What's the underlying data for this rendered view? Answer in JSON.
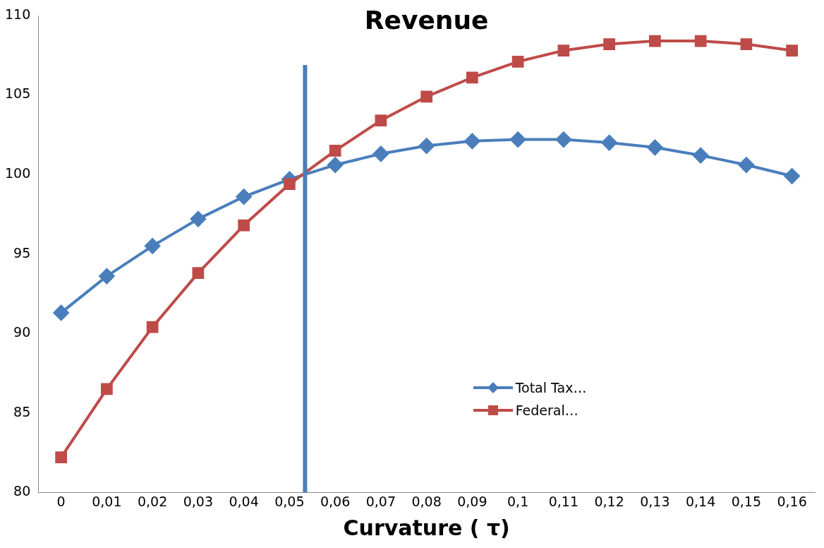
{
  "chart_data": {
    "type": "line",
    "title": "Revenue",
    "xlabel": "Curvature ( τ)",
    "x": [
      0,
      0.01,
      0.02,
      0.03,
      0.04,
      0.05,
      0.06,
      0.07,
      0.08,
      0.09,
      0.1,
      0.11,
      0.12,
      0.13,
      0.14,
      0.15,
      0.16
    ],
    "xlim": [
      -0.005,
      0.165
    ],
    "xticks": [
      0,
      {
        "value": 0.01,
        "label": "0,01"
      },
      {
        "value": 0.02,
        "label": "0,02"
      },
      {
        "value": 0.03,
        "label": "0,03"
      },
      {
        "value": 0.04,
        "label": "0,04"
      },
      {
        "value": 0.05,
        "label": "0,05"
      },
      {
        "value": 0.06,
        "label": "0,06"
      },
      {
        "value": 0.07,
        "label": "0,07"
      },
      {
        "value": 0.08,
        "label": "0,08"
      },
      {
        "value": 0.09,
        "label": "0,09"
      },
      {
        "value": 0.1,
        "label": "0,1"
      },
      {
        "value": 0.11,
        "label": "0,11"
      },
      {
        "value": 0.12,
        "label": "0,12"
      },
      {
        "value": 0.13,
        "label": "0,13"
      },
      {
        "value": 0.14,
        "label": "0,14"
      },
      {
        "value": 0.15,
        "label": "0,15"
      },
      {
        "value": 0.16,
        "label": "0,16"
      }
    ],
    "ylim": [
      80,
      110
    ],
    "yticks": [
      80,
      85,
      90,
      95,
      100,
      105,
      110
    ],
    "series": [
      {
        "name": "Total Tax…",
        "color": "#4a7ebb",
        "marker": "diamond",
        "values": [
          91.3,
          93.6,
          95.5,
          97.2,
          98.6,
          99.7,
          100.6,
          101.3,
          101.8,
          102.1,
          102.2,
          102.2,
          102.0,
          101.7,
          101.2,
          100.6,
          99.9
        ]
      },
      {
        "name": "Federal…",
        "color": "#be4b48",
        "marker": "square",
        "values": [
          82.2,
          86.5,
          90.4,
          93.8,
          96.8,
          99.4,
          101.5,
          103.4,
          104.9,
          106.1,
          107.1,
          107.8,
          108.2,
          108.4,
          108.4,
          108.2,
          107.8
        ]
      }
    ],
    "ref_lines": [
      {
        "axis": "x",
        "value": 0.0534,
        "color": "#4a7ebb"
      }
    ],
    "legend": "bottom right",
    "grid": false
  }
}
